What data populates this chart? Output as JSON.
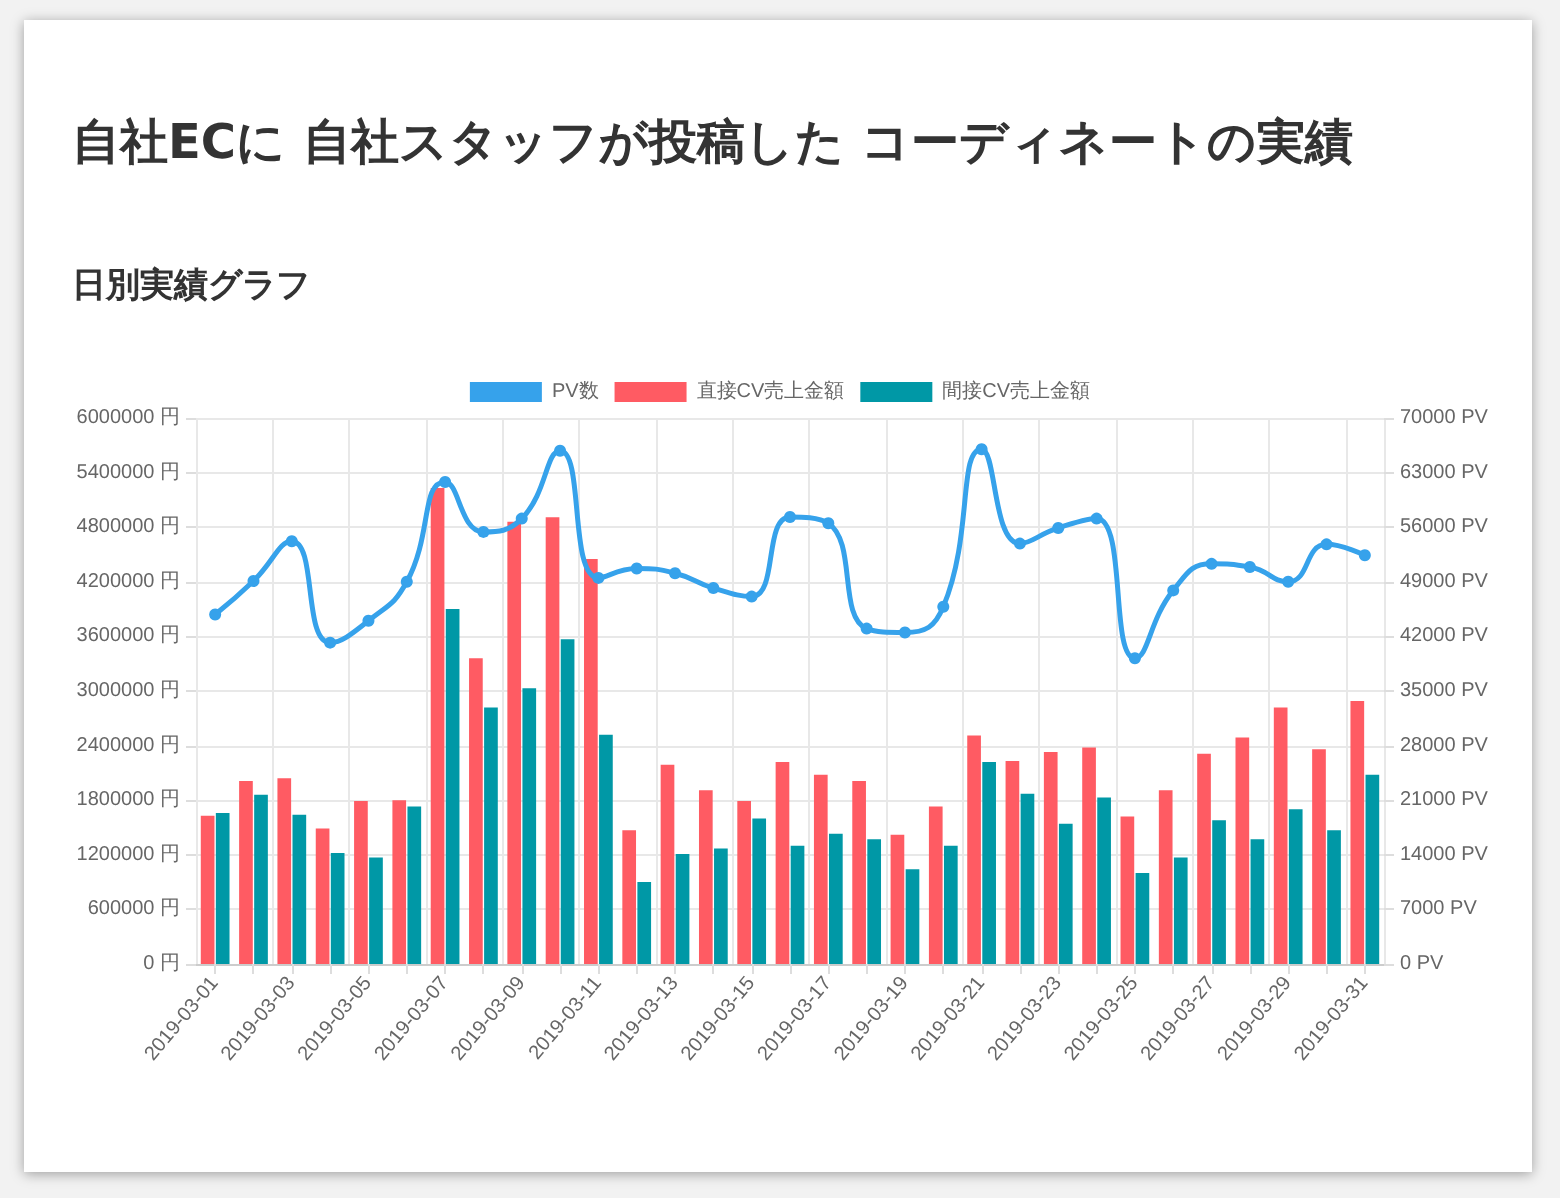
{
  "chart_data": {
    "type": "bar",
    "title": "自社ECに 自社スタッフが投稿した コーディネートの実績",
    "subtitle": "日別実績グラフ",
    "categories": [
      "2019-03-01",
      null,
      "2019-03-03",
      null,
      "2019-03-05",
      null,
      "2019-03-07",
      null,
      "2019-03-09",
      null,
      "2019-03-11",
      null,
      "2019-03-13",
      null,
      "2019-03-15",
      null,
      "2019-03-17",
      null,
      "2019-03-19",
      null,
      "2019-03-21",
      null,
      "2019-03-23",
      null,
      "2019-03-25",
      null,
      "2019-03-27",
      null,
      "2019-03-29",
      null,
      "2019-03-31"
    ],
    "series": [
      {
        "name": "PV数",
        "type": "line",
        "axis": "y2",
        "color": "#36a2eb",
        "marker": "circle",
        "values": [
          44800,
          49100,
          54200,
          41200,
          44000,
          49000,
          61800,
          55400,
          57100,
          65800,
          49500,
          50700,
          50100,
          48200,
          47100,
          57300,
          56500,
          43000,
          42500,
          45800,
          66000,
          53900,
          55900,
          57100,
          39200,
          47900,
          51300,
          50900,
          49000,
          53800,
          52400
        ]
      },
      {
        "name": "直接CV売上金額",
        "color": "#ff5b63",
        "values": [
          1630000,
          2010000,
          2040000,
          1490000,
          1790000,
          1800000,
          5230000,
          3360000,
          4860000,
          4910000,
          4450000,
          1470000,
          2190000,
          1910000,
          1790000,
          2220000,
          2080000,
          2010000,
          1420000,
          1730000,
          2510000,
          2230000,
          2330000,
          2380000,
          1620000,
          1910000,
          2310000,
          2490000,
          2820000,
          2360000,
          2890000
        ]
      },
      {
        "name": "間接CV売上金額",
        "color": "#0098a6",
        "values": [
          1660000,
          1860000,
          1640000,
          1220000,
          1170000,
          1730000,
          3900000,
          2820000,
          3030000,
          3570000,
          2520000,
          900000,
          1210000,
          1270000,
          1600000,
          1300000,
          1430000,
          1370000,
          1040000,
          1300000,
          2220000,
          1870000,
          1540000,
          1830000,
          1000000,
          1170000,
          1580000,
          1370000,
          1700000,
          1470000,
          2080000
        ]
      }
    ],
    "ylim": [
      0,
      6000000
    ],
    "yticks": [
      {
        "value": 0,
        "label": "0 円"
      },
      {
        "value": 600000,
        "label": "600000 円"
      },
      {
        "value": 1200000,
        "label": "1200000 円"
      },
      {
        "value": 1800000,
        "label": "1800000 円"
      },
      {
        "value": 2400000,
        "label": "2400000 円"
      },
      {
        "value": 3000000,
        "label": "3000000 円"
      },
      {
        "value": 3600000,
        "label": "3600000 円"
      },
      {
        "value": 4200000,
        "label": "4200000 円"
      },
      {
        "value": 4800000,
        "label": "4800000 円"
      },
      {
        "value": 5400000,
        "label": "5400000 円"
      },
      {
        "value": 6000000,
        "label": "6000000 円"
      }
    ],
    "y2lim": [
      0,
      70000
    ],
    "y2ticks": [
      {
        "value": 0,
        "label": "0 PV"
      },
      {
        "value": 7000,
        "label": "7000 PV"
      },
      {
        "value": 14000,
        "label": "14000 PV"
      },
      {
        "value": 21000,
        "label": "21000 PV"
      },
      {
        "value": 28000,
        "label": "28000 PV"
      },
      {
        "value": 35000,
        "label": "35000 PV"
      },
      {
        "value": 42000,
        "label": "42000 PV"
      },
      {
        "value": 49000,
        "label": "49000 PV"
      },
      {
        "value": 56000,
        "label": "56000 PV"
      },
      {
        "value": 63000,
        "label": "63000 PV"
      },
      {
        "value": 70000,
        "label": "70000 PV"
      }
    ],
    "grid": true,
    "legend": "top"
  }
}
